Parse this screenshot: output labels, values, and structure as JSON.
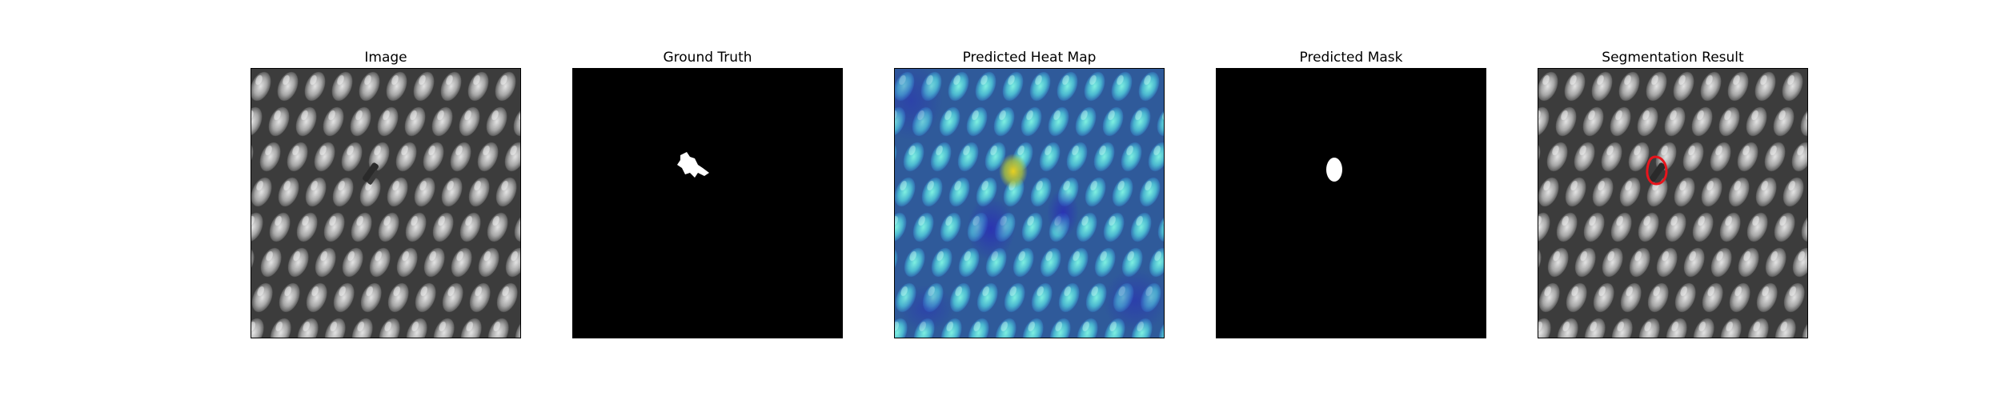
{
  "figure": {
    "panels": [
      {
        "title": "Image",
        "content": "fabric-texture"
      },
      {
        "title": "Ground Truth",
        "content": "binary-mask"
      },
      {
        "title": "Predicted Heat Map",
        "content": "heatmap-overlay"
      },
      {
        "title": "Predicted Mask",
        "content": "binary-mask"
      },
      {
        "title": "Segmentation Result",
        "content": "contour-overlay"
      }
    ],
    "colors": {
      "background": "#ffffff",
      "mask_foreground": "#ffffff",
      "mask_background": "#000000",
      "contour": "#e8141c",
      "heatmap_low": "#3a4fd8",
      "heatmap_mid": "#3fd6c8",
      "heatmap_high": "#d6c02a"
    }
  }
}
